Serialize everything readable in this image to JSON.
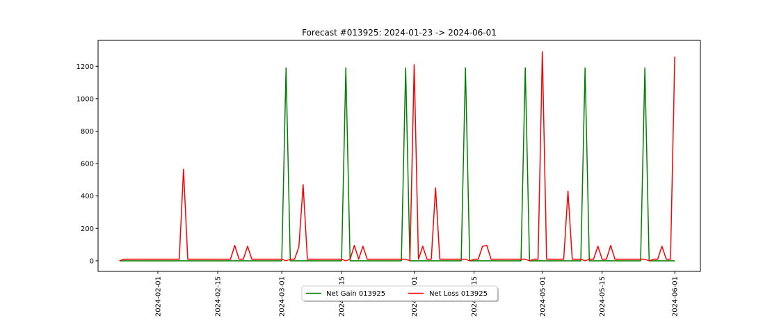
{
  "chart_data": {
    "type": "line",
    "title": "Forecast #013925: 2024-01-23 -> 2024-06-01",
    "xlabel": "",
    "ylabel": "",
    "x_range": [
      "2024-01-18",
      "2024-06-07"
    ],
    "ylim": [
      -65,
      1360
    ],
    "x_ticks": [
      "2024-02-01",
      "2024-02-15",
      "2024-03-01",
      "2024-03-15",
      "2024-04-01",
      "2024-04-15",
      "2024-05-01",
      "2024-05-15",
      "2024-06-01"
    ],
    "y_ticks": [
      0,
      200,
      400,
      600,
      800,
      1000,
      1200
    ],
    "grid": false,
    "legend_position": "bottom-center, outside",
    "series": [
      {
        "name": "Net Gain 013925",
        "color": "#008000",
        "x": [
          "2024-01-23",
          "2024-03-01",
          "2024-03-02",
          "2024-03-03",
          "2024-03-15",
          "2024-03-16",
          "2024-03-17",
          "2024-03-29",
          "2024-03-30",
          "2024-03-31",
          "2024-04-12",
          "2024-04-13",
          "2024-04-14",
          "2024-04-26",
          "2024-04-27",
          "2024-04-28",
          "2024-05-10",
          "2024-05-11",
          "2024-05-12",
          "2024-05-24",
          "2024-05-25",
          "2024-05-26",
          "2024-06-01"
        ],
        "y": [
          0,
          0,
          1190,
          0,
          0,
          1190,
          0,
          0,
          1190,
          0,
          0,
          1190,
          0,
          0,
          1190,
          0,
          0,
          1190,
          0,
          0,
          1190,
          0,
          0
        ]
      },
      {
        "name": "Net Loss 013925",
        "color": "#ff0000",
        "x": [
          "2024-01-23",
          "2024-01-24",
          "2024-02-06",
          "2024-02-07",
          "2024-02-08",
          "2024-02-18",
          "2024-02-19",
          "2024-02-20",
          "2024-02-21",
          "2024-02-22",
          "2024-02-23",
          "2024-03-01",
          "2024-03-02",
          "2024-03-03",
          "2024-03-04",
          "2024-03-05",
          "2024-03-06",
          "2024-03-07",
          "2024-03-08",
          "2024-03-15",
          "2024-03-16",
          "2024-03-17",
          "2024-03-18",
          "2024-03-19",
          "2024-03-20",
          "2024-03-21",
          "2024-03-30",
          "2024-03-31",
          "2024-04-01",
          "2024-04-02",
          "2024-04-03",
          "2024-04-04",
          "2024-04-05",
          "2024-04-06",
          "2024-04-07",
          "2024-04-08",
          "2024-04-13",
          "2024-04-14",
          "2024-04-15",
          "2024-04-16",
          "2024-04-17",
          "2024-04-18",
          "2024-04-19",
          "2024-04-20",
          "2024-04-27",
          "2024-04-28",
          "2024-04-29",
          "2024-04-30",
          "2024-05-01",
          "2024-05-02",
          "2024-05-06",
          "2024-05-07",
          "2024-05-08",
          "2024-05-10",
          "2024-05-11",
          "2024-05-12",
          "2024-05-13",
          "2024-05-14",
          "2024-05-15",
          "2024-05-16",
          "2024-05-17",
          "2024-05-18",
          "2024-05-19",
          "2024-05-25",
          "2024-05-26",
          "2024-05-27",
          "2024-05-28",
          "2024-05-29",
          "2024-05-30",
          "2024-05-31",
          "2024-06-01"
        ],
        "y": [
          0,
          10,
          10,
          565,
          10,
          10,
          95,
          10,
          10,
          90,
          10,
          10,
          0,
          10,
          10,
          85,
          470,
          10,
          10,
          10,
          0,
          10,
          95,
          10,
          90,
          10,
          10,
          0,
          1210,
          10,
          90,
          10,
          10,
          450,
          10,
          10,
          10,
          0,
          10,
          10,
          90,
          95,
          10,
          10,
          10,
          0,
          10,
          10,
          1290,
          10,
          10,
          430,
          10,
          10,
          0,
          10,
          10,
          90,
          10,
          10,
          95,
          10,
          10,
          10,
          0,
          10,
          10,
          90,
          10,
          10,
          1260
        ]
      }
    ]
  }
}
